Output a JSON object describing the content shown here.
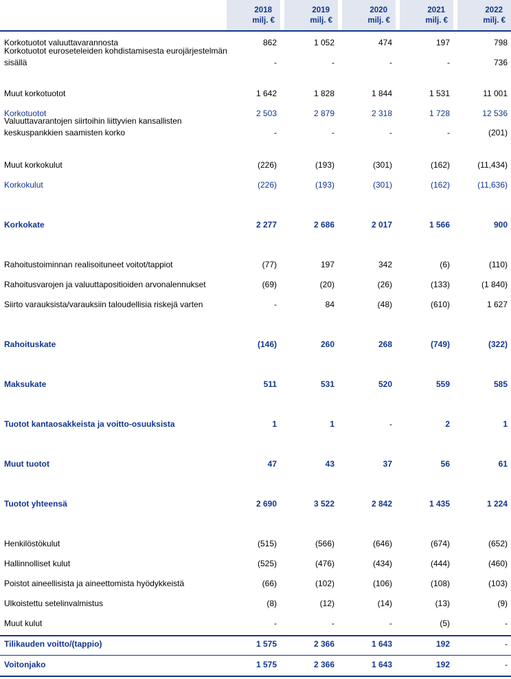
{
  "header": {
    "unit": "milj. €",
    "years": [
      "2018",
      "2019",
      "2020",
      "2021",
      "2022"
    ]
  },
  "rows": [
    {
      "label": "Korkotuotot valuuttavarannosta",
      "values": [
        "862",
        "1 052",
        "474",
        "197",
        "798"
      ],
      "style": "normal"
    },
    {
      "label": "Korkotuotot euroseteleiden kohdistamisesta eurojärjestelmän sisällä",
      "values": [
        "-",
        "-",
        "-",
        "-",
        "736"
      ],
      "style": "normal"
    },
    {
      "label": "Muut korkotuotot",
      "values": [
        "1 642",
        "1 828",
        "1 844",
        "1 531",
        "11 001"
      ],
      "style": "normal"
    },
    {
      "label": "Korkotuotot",
      "values": [
        "2 503",
        "2 879",
        "2 318",
        "1 728",
        "12 536"
      ],
      "style": "subtotal"
    },
    {
      "label": "Valuuttavarantojen siirtoihin liittyvien kansallisten keskuspankkien saamisten korko",
      "values": [
        "-",
        "-",
        "-",
        "-",
        "(201)"
      ],
      "style": "normal"
    },
    {
      "label": "Muut korkokulut",
      "values": [
        "(226)",
        "(193)",
        "(301)",
        "(162)",
        "(11,434)"
      ],
      "style": "normal"
    },
    {
      "label": "Korkokulut",
      "values": [
        "(226)",
        "(193)",
        "(301)",
        "(162)",
        "(11,636)"
      ],
      "style": "subtotal"
    },
    {
      "label": "Korkokate",
      "values": [
        "2 277",
        "2 686",
        "2 017",
        "1 566",
        "900"
      ],
      "style": "total"
    },
    {
      "label": "Rahoitustoiminnan realisoituneet voitot/tappiot",
      "values": [
        "(77)",
        "197",
        "342",
        "(6)",
        "(110)"
      ],
      "style": "normal"
    },
    {
      "label": "Rahoitusvarojen ja valuuttapositioiden arvonalennukset",
      "values": [
        "(69)",
        "(20)",
        "(26)",
        "(133)",
        "(1 840)"
      ],
      "style": "normal"
    },
    {
      "label": "Siirto varauksista/varauksiin taloudellisia riskejä varten",
      "values": [
        "-",
        "84",
        "(48)",
        "(610)",
        "1 627"
      ],
      "style": "normal"
    },
    {
      "label": "Rahoituskate",
      "values": [
        "(146)",
        "260",
        "268",
        "(749)",
        "(322)"
      ],
      "style": "total"
    },
    {
      "label": "Maksukate",
      "values": [
        "511",
        "531",
        "520",
        "559",
        "585"
      ],
      "style": "total"
    },
    {
      "label": "Tuotot kantaosakkeista ja voitto-osuuksista",
      "values": [
        "1",
        "1",
        "-",
        "2",
        "1"
      ],
      "style": "total"
    },
    {
      "label": "Muut tuotot",
      "values": [
        "47",
        "43",
        "37",
        "56",
        "61"
      ],
      "style": "total"
    },
    {
      "label": "Tuotot yhteensä",
      "values": [
        "2 690",
        "3 522",
        "2 842",
        "1 435",
        "1 224"
      ],
      "style": "total"
    },
    {
      "label": "Henkilöstökulut",
      "values": [
        "(515)",
        "(566)",
        "(646)",
        "(674)",
        "(652)"
      ],
      "style": "normal"
    },
    {
      "label": "Hallinnolliset kulut",
      "values": [
        "(525)",
        "(476)",
        "(434)",
        "(444)",
        "(460)"
      ],
      "style": "normal"
    },
    {
      "label": "Poistot aineellisista ja aineettomista hyödykkeistä",
      "values": [
        "(66)",
        "(102)",
        "(106)",
        "(108)",
        "(103)"
      ],
      "style": "normal"
    },
    {
      "label": "Ulkoistettu setelinvalmistus",
      "values": [
        "(8)",
        "(12)",
        "(14)",
        "(13)",
        "(9)"
      ],
      "style": "normal"
    },
    {
      "label": "Muut kulut",
      "values": [
        "-",
        "-",
        "-",
        "(5)",
        "-"
      ],
      "style": "normal"
    },
    {
      "label": "Tilikauden voitto/(tappio)",
      "values": [
        "1 575",
        "2 366",
        "1 643",
        "192",
        "-"
      ],
      "style": "total"
    },
    {
      "label": "Voitonjako",
      "values": [
        "1 575",
        "2 366",
        "1 643",
        "192",
        "-"
      ],
      "style": "total"
    }
  ]
}
